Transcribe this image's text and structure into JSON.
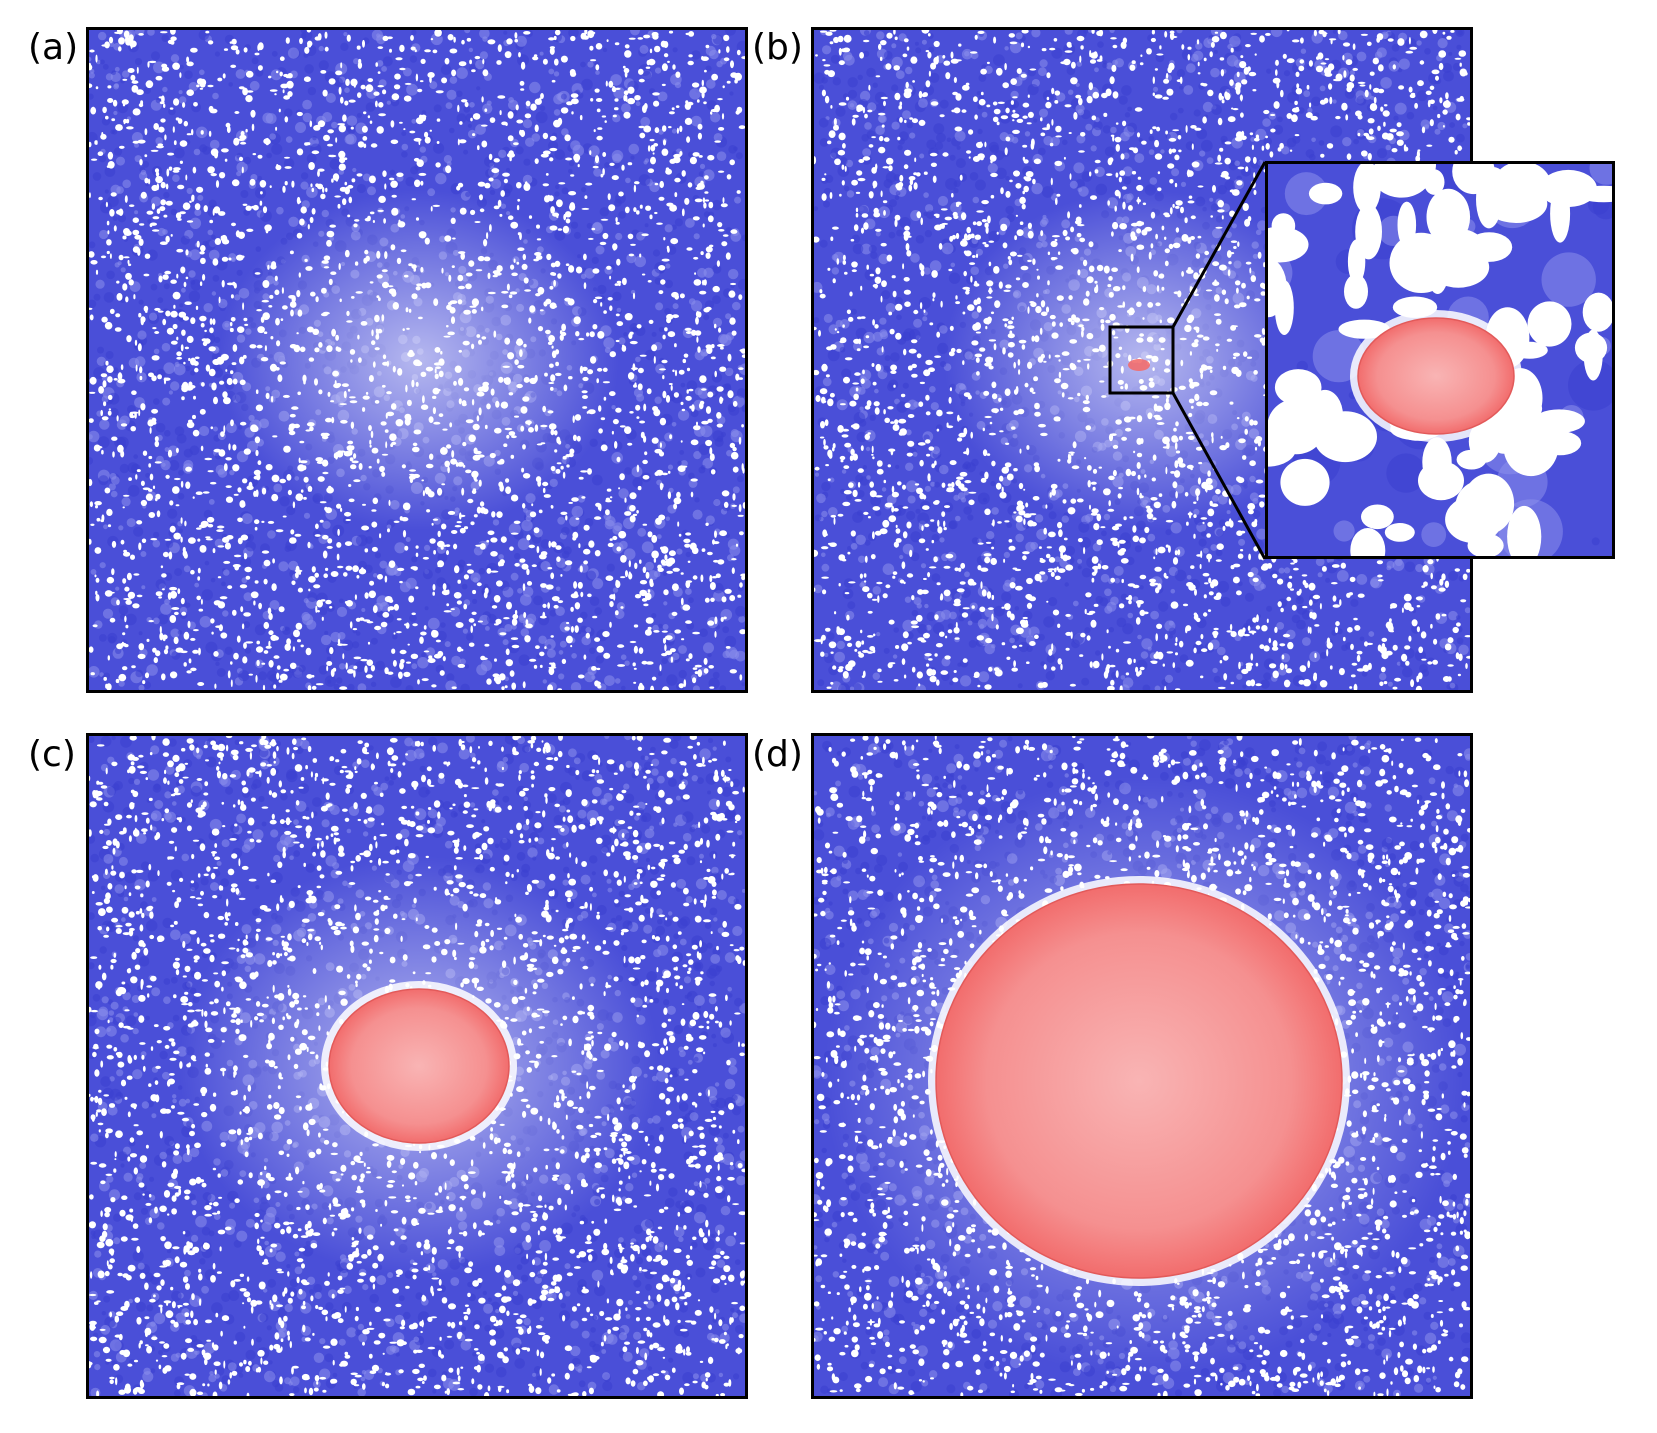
{
  "figure": {
    "panels": [
      {
        "id": "a",
        "label": "(a)"
      },
      {
        "id": "b",
        "label": "(b)"
      },
      {
        "id": "c",
        "label": "(c)"
      },
      {
        "id": "d",
        "label": "(d)"
      }
    ]
  },
  "colors": {
    "background_phase": "#4a4fd8",
    "background_phase_light": "#8d90ec",
    "void": "#ffffff",
    "nucleus": "#f26d6d",
    "nucleus_light": "#f9b4b4",
    "frame": "#000000"
  }
}
